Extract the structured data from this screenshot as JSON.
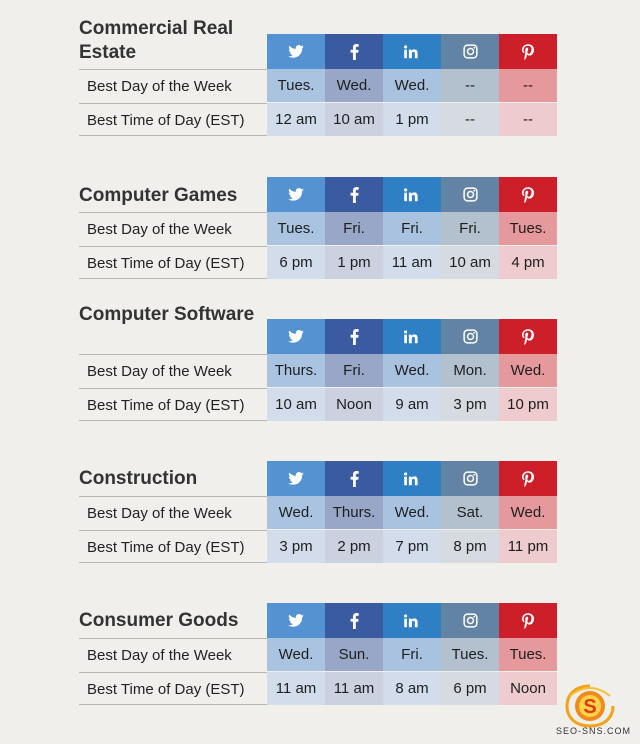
{
  "networks": [
    {
      "name": "twitter",
      "icon": "twitter-icon"
    },
    {
      "name": "facebook",
      "icon": "facebook-icon"
    },
    {
      "name": "linkedin",
      "icon": "linkedin-icon"
    },
    {
      "name": "instagram",
      "icon": "instagram-icon"
    },
    {
      "name": "pinterest",
      "icon": "pinterest-icon"
    }
  ],
  "row_labels": {
    "day": "Best Day of the Week",
    "time": "Best Time of Day (EST)"
  },
  "sections": [
    {
      "title": "Commercial Real Estate",
      "day": [
        "Tues.",
        "Wed.",
        "Wed.",
        "--",
        "--"
      ],
      "time": [
        "12 am",
        "10 am",
        "1 pm",
        "--",
        "--"
      ]
    },
    {
      "title": "Computer Games",
      "day": [
        "Tues.",
        "Fri.",
        "Fri.",
        "Fri.",
        "Tues."
      ],
      "time": [
        "6 pm",
        "1 pm",
        "11 am",
        "10 am",
        "4 pm"
      ]
    },
    {
      "title": "Computer Software",
      "day": [
        "Thurs.",
        "Fri.",
        "Wed.",
        "Mon.",
        "Wed."
      ],
      "time": [
        "10 am",
        "Noon",
        "9 am",
        "3 pm",
        "10 pm"
      ]
    },
    {
      "title": "Construction",
      "day": [
        "Wed.",
        "Thurs.",
        "Wed.",
        "Sat.",
        "Wed."
      ],
      "time": [
        "3 pm",
        "2 pm",
        "7 pm",
        "8 pm",
        "11 pm"
      ]
    },
    {
      "title": "Consumer Goods",
      "day": [
        "Wed.",
        "Sun.",
        "Fri.",
        "Tues.",
        "Tues."
      ],
      "time": [
        "11 am",
        "11 am",
        "8 am",
        "6 pm",
        "Noon"
      ]
    }
  ],
  "watermark": "SEO-SNS.COM"
}
